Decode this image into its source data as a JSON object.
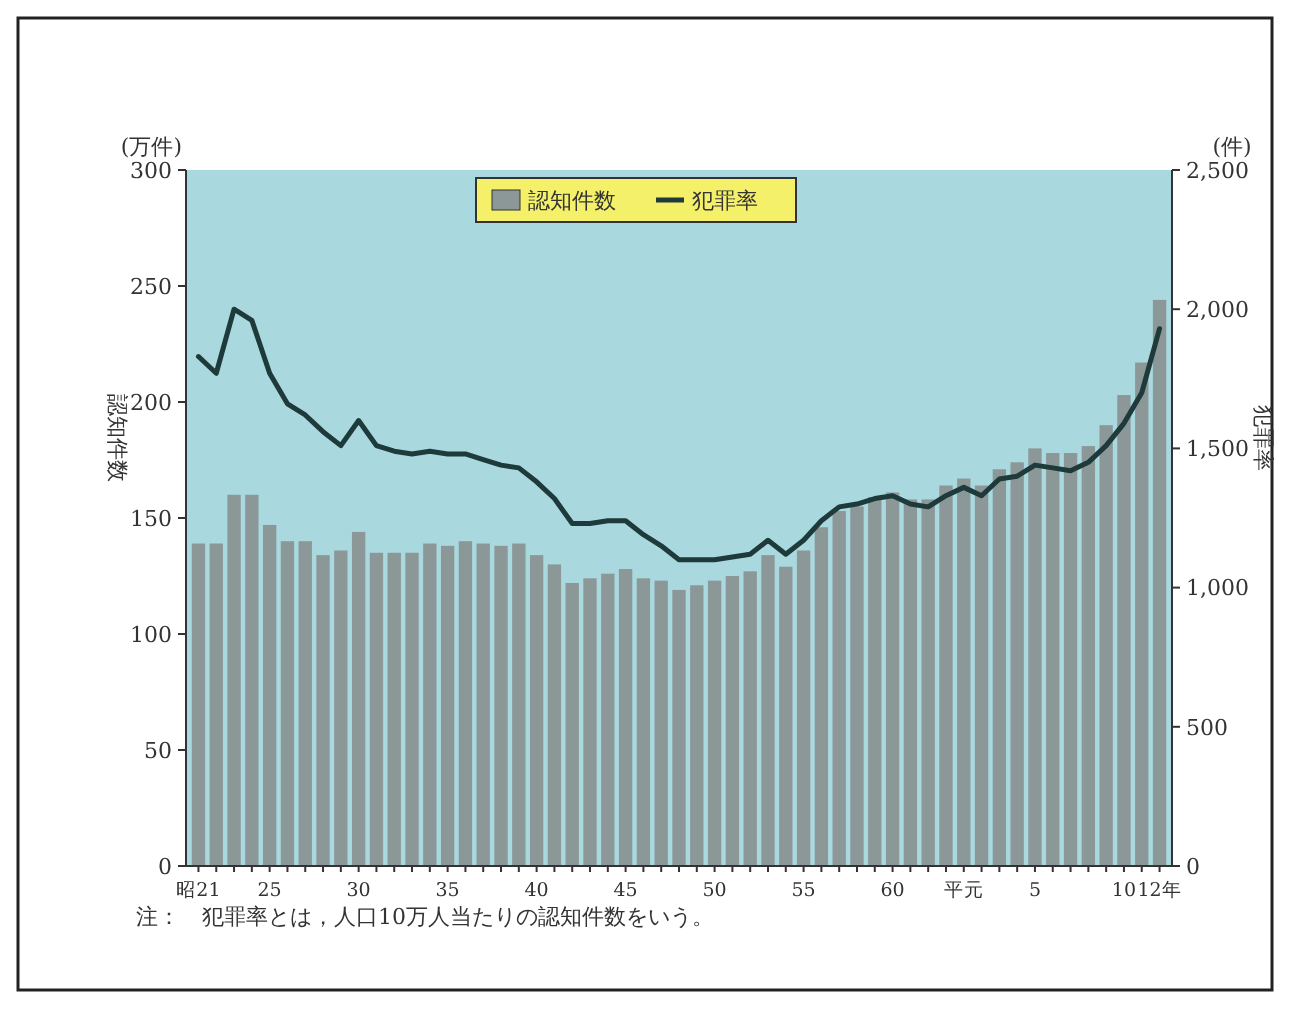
{
  "chart_data": {
    "type": "bar",
    "categories": [
      "昭21",
      null,
      null,
      null,
      "25",
      null,
      null,
      null,
      null,
      "30",
      null,
      null,
      null,
      null,
      "35",
      null,
      null,
      null,
      null,
      "40",
      null,
      null,
      null,
      null,
      "45",
      null,
      null,
      null,
      null,
      "50",
      null,
      null,
      null,
      null,
      "55",
      null,
      null,
      null,
      null,
      "60",
      null,
      null,
      null,
      "平元",
      null,
      null,
      null,
      "5",
      null,
      null,
      null,
      null,
      "10",
      null,
      "12年"
    ],
    "series": [
      {
        "name": "認知件数",
        "color": "#8c9898",
        "values": [
          139,
          139,
          160,
          160,
          147,
          140,
          140,
          134,
          136,
          144,
          135,
          135,
          135,
          139,
          138,
          140,
          139,
          138,
          139,
          134,
          130,
          122,
          124,
          126,
          128,
          124,
          123,
          119,
          121,
          123,
          125,
          127,
          134,
          129,
          136,
          146,
          153,
          155,
          159,
          161,
          158,
          158,
          164,
          167,
          164,
          171,
          174,
          180,
          178,
          178,
          181,
          190,
          203,
          217,
          244
        ]
      },
      {
        "name": "犯罪率",
        "type": "line",
        "axis": "y2",
        "color": "#1e3a3a",
        "values": [
          1830,
          1770,
          2000,
          1960,
          1770,
          1660,
          1620,
          1560,
          1510,
          1600,
          1510,
          1490,
          1480,
          1490,
          1480,
          1480,
          1460,
          1440,
          1430,
          1380,
          1320,
          1230,
          1230,
          1240,
          1240,
          1190,
          1150,
          1100,
          1100,
          1100,
          1110,
          1120,
          1170,
          1120,
          1170,
          1240,
          1290,
          1300,
          1320,
          1330,
          1300,
          1290,
          1330,
          1360,
          1330,
          1390,
          1400,
          1440,
          1430,
          1420,
          1450,
          1510,
          1590,
          1700,
          1930
        ]
      }
    ],
    "ylabel": "認知件数",
    "y2label": "犯罪率",
    "ylim": [
      0,
      300
    ],
    "yticks": [
      0,
      50,
      100,
      150,
      200,
      250,
      300
    ],
    "y2lim": [
      0,
      2500
    ],
    "y2ticks": [
      0,
      500,
      {
        "value": 1000,
        "label": "1,000"
      },
      {
        "value": 1500,
        "label": "1,500"
      },
      {
        "value": 2000,
        "label": "2,000"
      },
      {
        "value": 2500,
        "label": "2,500"
      }
    ],
    "annotations": [
      "(万件)",
      "(件)",
      "注：　犯罪率とは，人口10万人当たりの認知件数をいう。"
    ],
    "legend": "top",
    "grid": false
  }
}
